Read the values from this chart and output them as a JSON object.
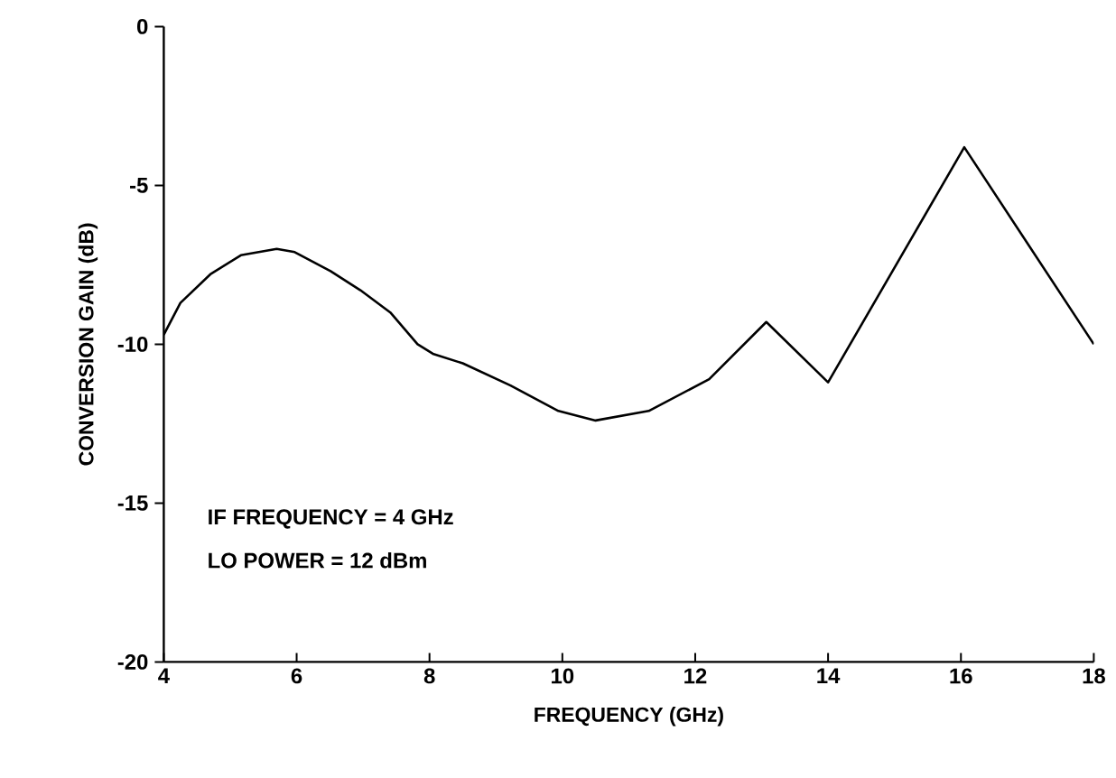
{
  "chart_data": {
    "type": "line",
    "xlabel": "FREQUENCY (GHz)",
    "ylabel": "CONVERSION GAIN (dB)",
    "annotations": [
      "IF FREQUENCY = 4 GHz",
      "LO POWER = 12 dBm"
    ],
    "xlim": [
      4,
      18
    ],
    "xticks": [
      4,
      6,
      8,
      10,
      12,
      14,
      16,
      18
    ],
    "ylim": [
      -20,
      0
    ],
    "yticks": [
      -20,
      -15,
      -10,
      -5,
      0
    ],
    "grid": false,
    "marker": "none",
    "line_style": "solid",
    "series": [
      {
        "color": "#000000",
        "x": [
          4,
          4.25,
          4.7,
          5.16,
          5.7,
          5.97,
          6.51,
          6.96,
          7.41,
          7.82,
          8.05,
          8.5,
          9.22,
          9.94,
          10.5,
          11.3,
          12.21,
          13.07,
          14.0,
          16.05,
          18.0
        ],
        "values": [
          -9.7,
          -8.7,
          -7.8,
          -7.2,
          -7.0,
          -7.1,
          -7.7,
          -8.3,
          -9.0,
          -10.0,
          -10.3,
          -10.6,
          -11.3,
          -12.1,
          -12.4,
          -12.1,
          -11.1,
          -9.3,
          -11.2,
          -3.8,
          -10.0
        ]
      }
    ]
  }
}
